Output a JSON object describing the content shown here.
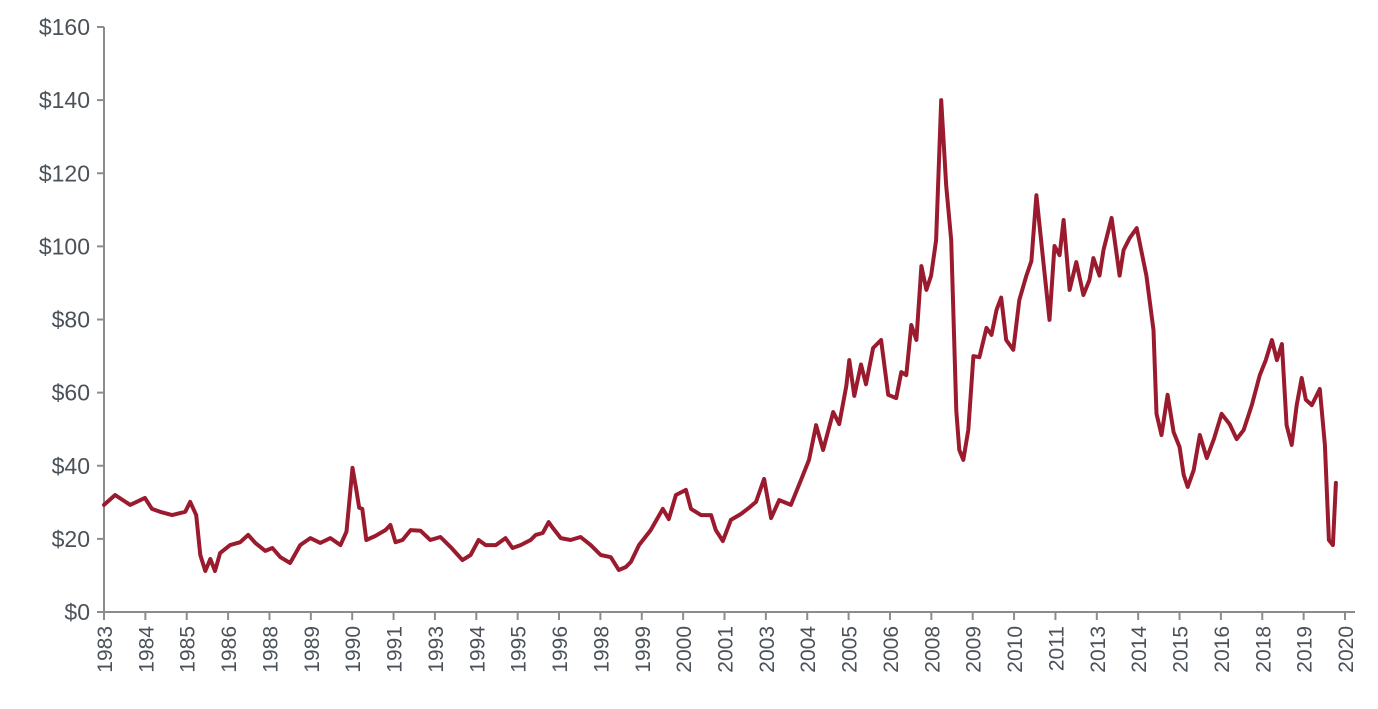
{
  "chart_data": {
    "type": "line",
    "title": "",
    "xlabel": "",
    "ylabel": "",
    "xlim": [
      1983,
      2020
    ],
    "ylim": [
      0,
      160
    ],
    "grid": false,
    "line_color": "#9b1b2e",
    "axis_color": "#8c8c8c",
    "y_ticks": [
      0,
      20,
      40,
      60,
      80,
      100,
      120,
      140,
      160
    ],
    "y_tick_labels": [
      "$0",
      "$20",
      "$40",
      "$60",
      "$80",
      "$100",
      "$120",
      "$140",
      "$160"
    ],
    "x_tick_labels": [
      "1983",
      "1984",
      "1985",
      "1986",
      "1988",
      "1989",
      "1990",
      "1991",
      "1993",
      "1994",
      "1995",
      "1996",
      "1998",
      "1999",
      "2000",
      "2001",
      "2003",
      "2004",
      "2005",
      "2006",
      "2008",
      "2009",
      "2010",
      "2011",
      "2013",
      "2014",
      "2015",
      "2016",
      "2018",
      "2019",
      "2020"
    ],
    "series": [
      {
        "x": [
          1983.0,
          1983.33,
          1983.78,
          1984.22,
          1984.43,
          1984.67,
          1985.03,
          1985.42,
          1985.57,
          1985.75,
          1985.87,
          1986.02,
          1986.17,
          1986.31,
          1986.46,
          1986.76,
          1987.06,
          1987.3,
          1987.51,
          1987.81,
          1988.02,
          1988.26,
          1988.55,
          1988.85,
          1989.15,
          1989.45,
          1989.75,
          1990.05,
          1990.23,
          1990.41,
          1990.52,
          1990.61,
          1990.7,
          1990.82,
          1991.09,
          1991.39,
          1991.54,
          1991.69,
          1991.9,
          1992.14,
          1992.44,
          1992.73,
          1993.03,
          1993.33,
          1993.69,
          1993.93,
          1994.17,
          1994.38,
          1994.68,
          1994.97,
          1995.18,
          1995.42,
          1995.72,
          1995.87,
          1996.08,
          1996.26,
          1996.38,
          1996.62,
          1996.91,
          1997.21,
          1997.51,
          1997.81,
          1998.11,
          1998.35,
          1998.56,
          1998.71,
          1998.95,
          1999.3,
          1999.66,
          1999.84,
          2000.05,
          2000.35,
          2000.5,
          2000.8,
          2001.1,
          2001.24,
          2001.45,
          2001.69,
          2001.99,
          2002.23,
          2002.44,
          2002.68,
          2002.89,
          2003.13,
          2003.48,
          2003.78,
          2004.02,
          2004.23,
          2004.44,
          2004.74,
          2004.92,
          2005.13,
          2005.22,
          2005.37,
          2005.57,
          2005.72,
          2005.93,
          2006.17,
          2006.38,
          2006.62,
          2006.77,
          2006.92,
          2007.07,
          2007.22,
          2007.37,
          2007.52,
          2007.66,
          2007.81,
          2007.96,
          2008.11,
          2008.26,
          2008.41,
          2008.5,
          2008.62,
          2008.77,
          2008.92,
          2009.1,
          2009.31,
          2009.46,
          2009.61,
          2009.75,
          2009.9,
          2010.11,
          2010.29,
          2010.5,
          2010.65,
          2010.8,
          2011.01,
          2011.19,
          2011.34,
          2011.49,
          2011.61,
          2011.79,
          2011.99,
          2012.2,
          2012.38,
          2012.5,
          2012.68,
          2012.8,
          2013.04,
          2013.28,
          2013.4,
          2013.58,
          2013.79,
          2014.08,
          2014.29,
          2014.38,
          2014.53,
          2014.71,
          2014.89,
          2015.07,
          2015.19,
          2015.31,
          2015.49,
          2015.67,
          2015.88,
          2016.09,
          2016.32,
          2016.56,
          2016.77,
          2016.98,
          2017.22,
          2017.46,
          2017.64,
          2017.82,
          2017.97,
          2018.12,
          2018.26,
          2018.41,
          2018.56,
          2018.71,
          2018.83,
          2019.01,
          2019.25,
          2019.4,
          2019.52,
          2019.64,
          2019.73
        ],
        "y": [
          29.3,
          32.0,
          29.3,
          31.2,
          28.2,
          27.4,
          26.5,
          27.4,
          30.1,
          26.5,
          15.6,
          11.2,
          14.5,
          11.2,
          16.1,
          18.3,
          19.1,
          21.1,
          18.9,
          16.7,
          17.5,
          15.0,
          13.4,
          18.3,
          20.2,
          18.9,
          20.2,
          18.3,
          22.0,
          39.4,
          33.6,
          28.5,
          28.2,
          19.7,
          20.8,
          22.4,
          23.8,
          19.1,
          19.7,
          22.4,
          22.2,
          19.7,
          20.5,
          17.8,
          14.2,
          15.6,
          19.7,
          18.3,
          18.3,
          20.2,
          17.5,
          18.3,
          19.7,
          21.1,
          21.6,
          24.6,
          23.0,
          20.2,
          19.7,
          20.5,
          18.3,
          15.6,
          15.0,
          11.5,
          12.3,
          13.7,
          18.3,
          22.4,
          28.2,
          25.4,
          32.0,
          33.4,
          28.2,
          26.5,
          26.5,
          22.4,
          19.4,
          25.2,
          26.8,
          28.5,
          30.1,
          36.4,
          25.7,
          30.6,
          29.3,
          36.1,
          41.6,
          51.1,
          44.3,
          54.7,
          51.4,
          61.8,
          68.9,
          59.1,
          67.7,
          62.3,
          72.2,
          74.4,
          59.4,
          58.5,
          65.6,
          64.8,
          78.5,
          74.4,
          94.6,
          88.1,
          92.0,
          101.7,
          140.0,
          116.6,
          101.7,
          55.0,
          44.3,
          41.6,
          49.8,
          70.0,
          69.7,
          77.7,
          75.8,
          82.6,
          86.0,
          74.4,
          71.7,
          85.3,
          92.0,
          96.0,
          114.0,
          95.4,
          79.9,
          100.1,
          97.6,
          107.2,
          88.1,
          95.7,
          86.7,
          90.8,
          96.8,
          92.0,
          99.0,
          107.8,
          92.0,
          99.0,
          102.3,
          105.0,
          92.0,
          77.1,
          54.2,
          48.4,
          59.4,
          49.2,
          45.1,
          37.5,
          34.2,
          38.8,
          48.4,
          42.1,
          47.3,
          54.2,
          51.4,
          47.3,
          49.8,
          56.6,
          64.8,
          68.9,
          74.4,
          68.9,
          73.3,
          51.1,
          45.7,
          56.6,
          64.0,
          58.1,
          56.6,
          61.0,
          45.7,
          19.7,
          18.3,
          35.3
        ]
      }
    ]
  }
}
